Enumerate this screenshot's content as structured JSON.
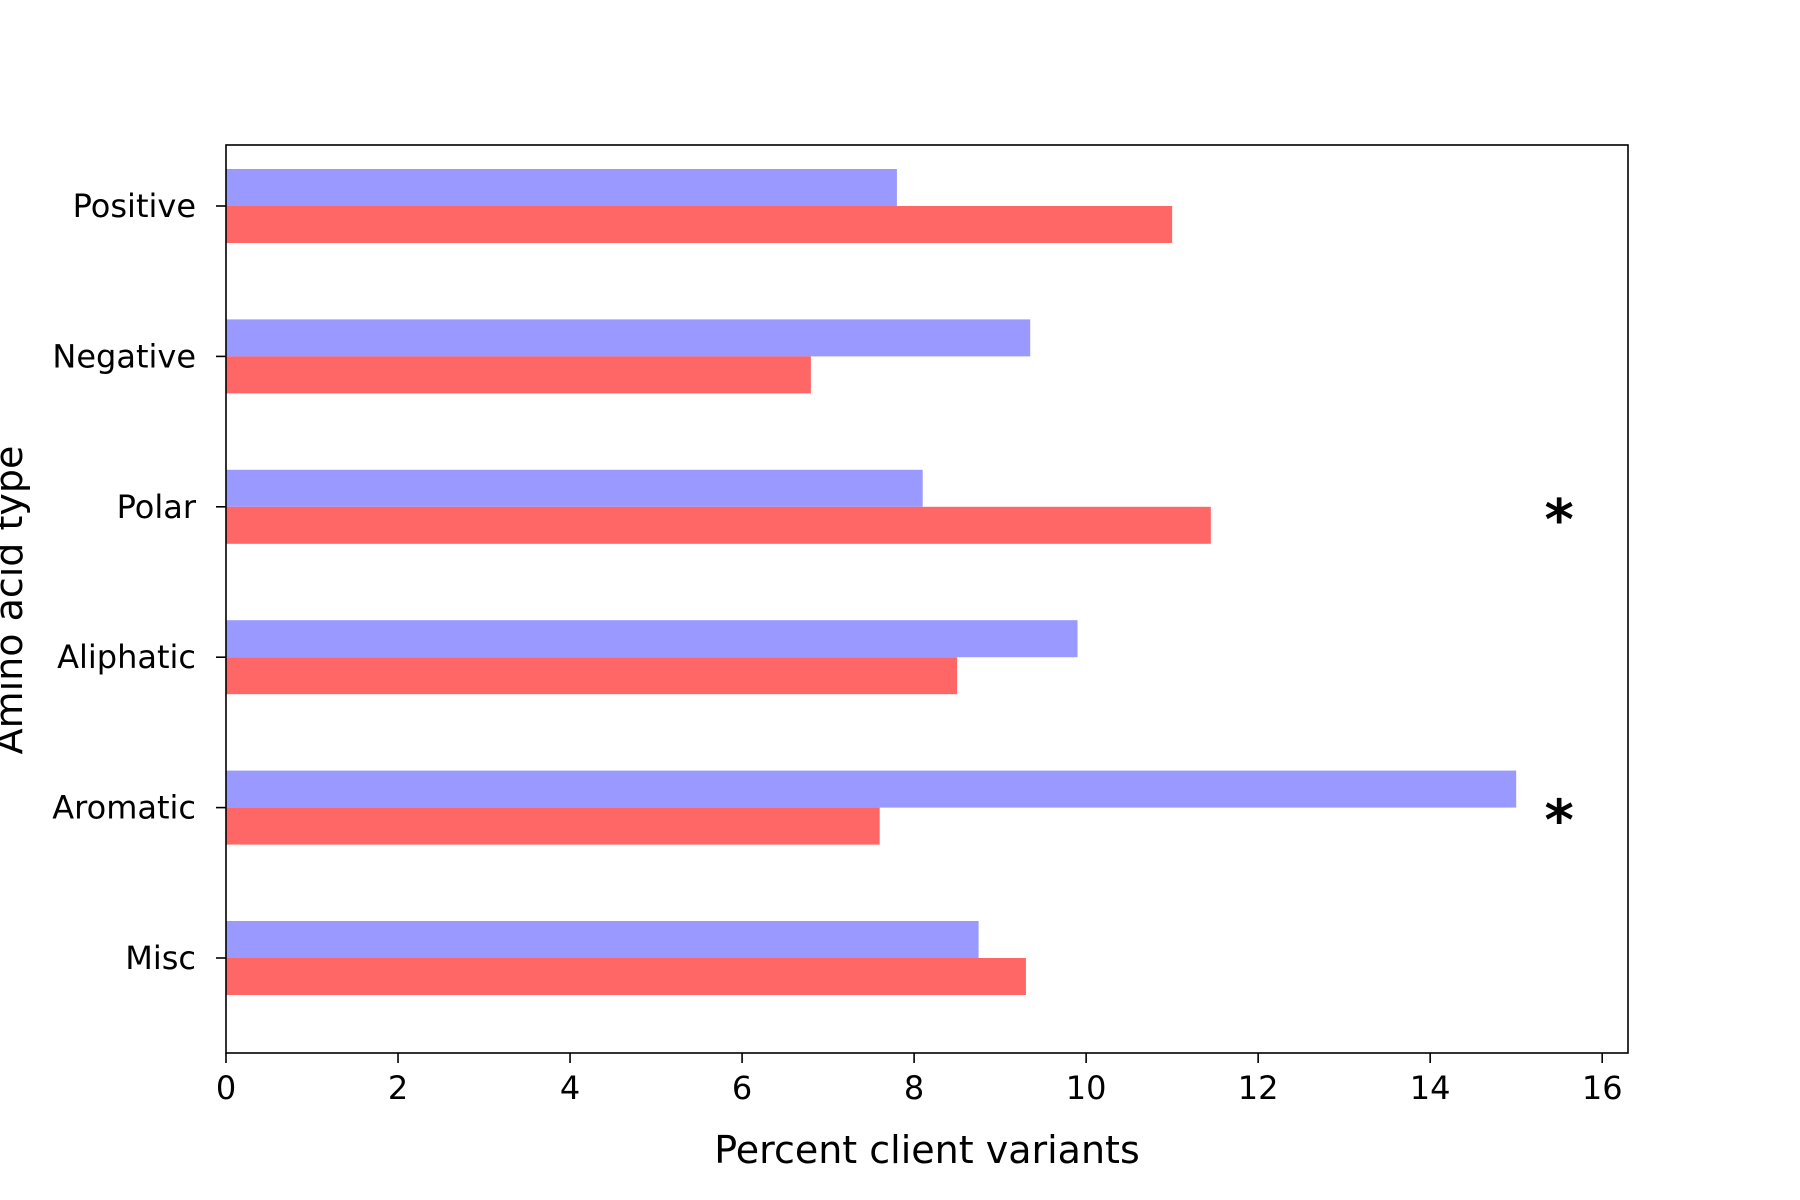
{
  "chart_data": {
    "type": "bar",
    "orientation": "horizontal",
    "xlabel": "Percent client variants",
    "ylabel": "Amino acid type",
    "xlim": [
      0,
      16.3
    ],
    "xticks": [
      0,
      2,
      4,
      6,
      8,
      10,
      12,
      14,
      16
    ],
    "categories": [
      "Positive",
      "Negative",
      "Polar",
      "Aliphatic",
      "Aromatic",
      "Misc"
    ],
    "series": [
      {
        "color": "#9999ff",
        "values": [
          7.8,
          9.35,
          8.1,
          9.9,
          15.0,
          8.75
        ]
      },
      {
        "color": "#ff6666",
        "values": [
          11.0,
          6.8,
          11.45,
          8.5,
          7.6,
          9.3
        ]
      }
    ],
    "annotations": [
      {
        "category": "Polar",
        "text": "*",
        "x": 15.5
      },
      {
        "category": "Aromatic",
        "text": "*",
        "x": 15.5
      }
    ],
    "grid": false,
    "legend": "none"
  }
}
